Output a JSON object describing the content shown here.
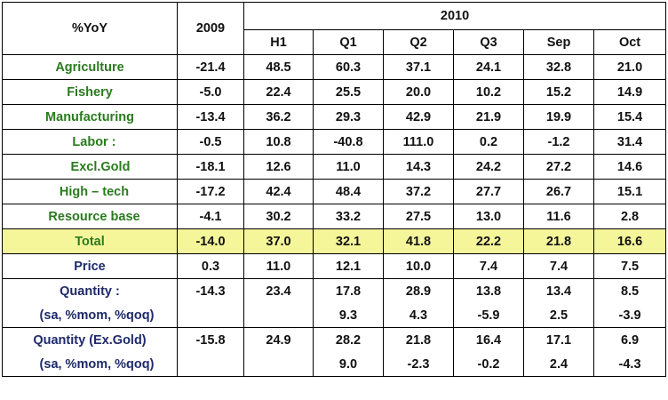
{
  "header": {
    "corner": "%YoY",
    "year_2009": "2009",
    "year_2010": "2010",
    "periods": [
      "H1",
      "Q1",
      "Q2",
      "Q3",
      "Sep",
      "Oct"
    ]
  },
  "rows": [
    {
      "label": "Agriculture",
      "values": [
        "-21.4",
        "48.5",
        "60.3",
        "37.1",
        "24.1",
        "32.8",
        "21.0"
      ]
    },
    {
      "label": "Fishery",
      "values": [
        "-5.0",
        "22.4",
        "25.5",
        "20.0",
        "10.2",
        "15.2",
        "14.9"
      ]
    },
    {
      "label": "Manufacturing",
      "values": [
        "-13.4",
        "36.2",
        "29.3",
        "42.9",
        "21.9",
        "19.9",
        "15.4"
      ]
    },
    {
      "label": "Labor :",
      "values": [
        "-0.5",
        "10.8",
        "-40.8",
        "111.0",
        "0.2",
        "-1.2",
        "31.4"
      ]
    },
    {
      "label": "Excl.Gold",
      "values": [
        "-18.1",
        "12.6",
        "11.0",
        "14.3",
        "24.2",
        "27.2",
        "14.6"
      ]
    },
    {
      "label": "High – tech",
      "values": [
        "-17.2",
        "42.4",
        "48.4",
        "37.2",
        "27.7",
        "26.7",
        "15.1"
      ]
    },
    {
      "label": "Resource base",
      "values": [
        "-4.1",
        "30.2",
        "33.2",
        "27.5",
        "13.0",
        "11.6",
        "2.8"
      ]
    },
    {
      "label": "Total",
      "values": [
        "-14.0",
        "37.0",
        "32.1",
        "41.8",
        "22.2",
        "21.8",
        "16.6"
      ]
    },
    {
      "label": "Price",
      "values": [
        "0.3",
        "11.0",
        "12.1",
        "10.0",
        "7.4",
        "7.4",
        "7.5"
      ]
    },
    {
      "label": "Quantity :",
      "values": [
        "-14.3",
        "23.4",
        "17.8",
        "28.9",
        "13.8",
        "13.4",
        "8.5"
      ]
    },
    {
      "label": "(sa, %mom, %qoq)",
      "values": [
        "",
        "",
        "9.3",
        "4.3",
        "-5.9",
        "2.5",
        "-3.9"
      ]
    },
    {
      "label": "Quantity (Ex.Gold)",
      "values": [
        "-15.8",
        "24.9",
        "28.2",
        "21.8",
        "16.4",
        "17.1",
        "6.9"
      ]
    },
    {
      "label": "(sa, %mom, %qoq)",
      "values": [
        "",
        "",
        "9.0",
        "-2.3",
        "-0.2",
        "2.4",
        "-4.3"
      ]
    }
  ],
  "colors": {
    "label_green": "#2b7a1f",
    "label_navy": "#1e2a6a",
    "total_highlight": "#f5f59a"
  }
}
